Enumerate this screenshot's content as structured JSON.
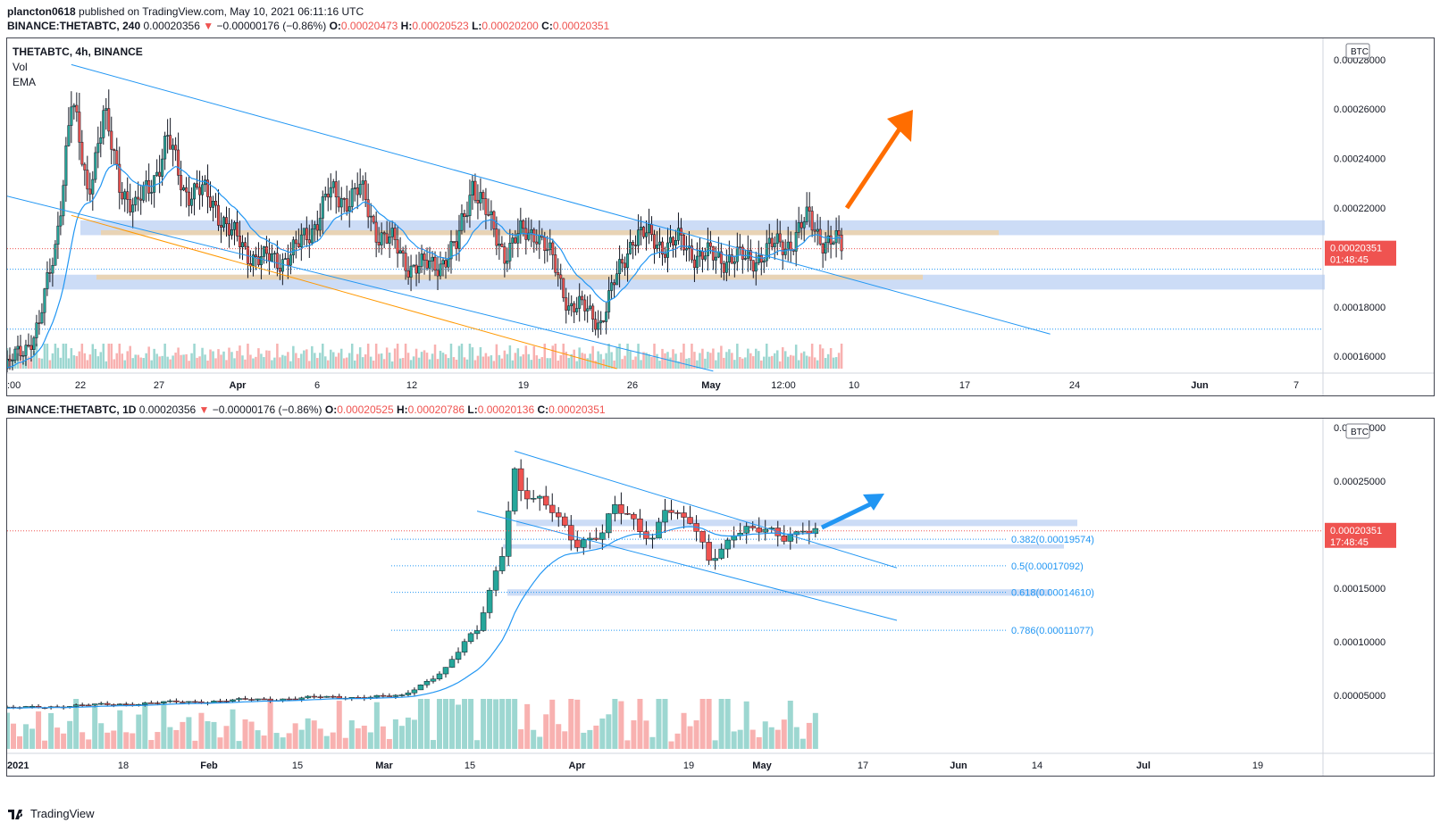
{
  "header": {
    "author": "plancton0618",
    "published": "published on TradingView.com, May 10, 2021 06:11:16 UTC"
  },
  "chart_data": [
    {
      "type": "candlestick",
      "title": "BINANCE:THETABTC, 240",
      "symbol_line": {
        "symbol": "BINANCE:THETABTC, 240",
        "last": "0.00020356",
        "change_arrow": "▼",
        "change": "−0.00000176 (−0.86%)",
        "O": "0.00020473",
        "H": "0.00020523",
        "L": "0.00020200",
        "C": "0.00020351"
      },
      "legend": [
        "THETABTC, 4h, BINANCE",
        "Vol",
        "EMA"
      ],
      "currency": "BTC",
      "y_ticks": [
        "0.00028000",
        "0.00026000",
        "0.00024000",
        "0.00022000",
        "0.00018000",
        "0.00016000"
      ],
      "ylim": [
        0.000155,
        0.000285
      ],
      "price_label": {
        "value": "0.00020351",
        "countdown": "01:48:45"
      },
      "x_ticks": [
        ":00",
        "22",
        "27",
        "Apr",
        "6",
        "12",
        "19",
        "26",
        "May",
        "12:00",
        "10",
        "17",
        "24",
        "Jun",
        "7"
      ],
      "x_range": [
        "2021-03-19",
        "2021-06-09"
      ],
      "close_series": [
        [
          "2021-03-19",
          0.000155
        ],
        [
          "2021-03-21",
          0.000172
        ],
        [
          "2021-03-22",
          0.000205
        ],
        [
          "2021-03-23",
          0.000262
        ],
        [
          "2021-03-24",
          0.000228
        ],
        [
          "2021-03-25",
          0.000256
        ],
        [
          "2021-03-26",
          0.000232
        ],
        [
          "2021-03-27",
          0.000218
        ],
        [
          "2021-03-29",
          0.000246
        ],
        [
          "2021-03-30",
          0.000229
        ],
        [
          "2021-04-01",
          0.000222
        ],
        [
          "2021-04-02",
          0.000208
        ],
        [
          "2021-04-04",
          0.000198
        ],
        [
          "2021-04-06",
          0.000202
        ],
        [
          "2021-04-08",
          0.000224
        ],
        [
          "2021-04-10",
          0.000226
        ],
        [
          "2021-04-11",
          0.000212
        ],
        [
          "2021-04-13",
          0.000198
        ],
        [
          "2021-04-14",
          0.000195
        ],
        [
          "2021-04-16",
          0.000203
        ],
        [
          "2021-04-17",
          0.000232
        ],
        [
          "2021-04-18",
          0.000214
        ],
        [
          "2021-04-19",
          0.000203
        ],
        [
          "2021-04-20",
          0.000208
        ],
        [
          "2021-04-21",
          0.000212
        ],
        [
          "2021-04-23",
          0.000182
        ],
        [
          "2021-04-24",
          0.000178
        ],
        [
          "2021-04-25",
          0.000175
        ],
        [
          "2021-04-26",
          0.000191
        ],
        [
          "2021-04-27",
          0.00021
        ],
        [
          "2021-04-28",
          0.000207
        ],
        [
          "2021-04-30",
          0.000205
        ],
        [
          "2021-05-01",
          0.000202
        ],
        [
          "2021-05-02",
          0.000199
        ],
        [
          "2021-05-03",
          0.000201
        ],
        [
          "2021-05-04",
          0.000198
        ],
        [
          "2021-05-05",
          0.000202
        ],
        [
          "2021-05-06",
          0.000204
        ],
        [
          "2021-05-07",
          0.000208
        ],
        [
          "2021-05-08",
          0.000215
        ],
        [
          "2021-05-09",
          0.000207
        ],
        [
          "2021-05-10",
          0.0002035
        ]
      ],
      "drawings": [
        {
          "kind": "trendline",
          "color": "#2196f3",
          "from": [
            "2021-03-23",
            0.000278
          ],
          "to": [
            "2021-05-23",
            0.000169
          ]
        },
        {
          "kind": "trendline",
          "color": "#2196f3",
          "from": [
            "2021-03-17",
            0.000228
          ],
          "to": [
            "2021-05-02",
            0.000154
          ]
        },
        {
          "kind": "trendline",
          "color": "#ff9800",
          "from": [
            "2021-03-23",
            0.000217
          ],
          "to": [
            "2021-04-26",
            0.000155
          ]
        },
        {
          "kind": "zone",
          "color": "#aac4f0",
          "y": [
            0.000209,
            0.000215
          ]
        },
        {
          "kind": "zone",
          "color": "#aac4f0",
          "y": [
            0.000187,
            0.000193
          ]
        },
        {
          "kind": "arrow",
          "color": "#ff6d00"
        }
      ],
      "hlines": [
        0.0001952,
        0.000171
      ]
    },
    {
      "type": "candlestick",
      "title": "BINANCE:THETABTC, 1D",
      "symbol_line": {
        "symbol": "BINANCE:THETABTC, 1D",
        "last": "0.00020356",
        "change_arrow": "▼",
        "change": "−0.00000176 (−0.86%)",
        "O": "0.00020525",
        "H": "0.00020786",
        "L": "0.00020136",
        "C": "0.00020351"
      },
      "currency": "BTC",
      "y_ticks": [
        "0.00030000",
        "0.00025000",
        "0.00015000",
        "0.00010000",
        "0.00005000"
      ],
      "ylim": [
        0.0,
        0.0003
      ],
      "price_label": {
        "value": "0.00020351",
        "countdown": "17:48:45"
      },
      "x_ticks": [
        "2021",
        "18",
        "Feb",
        "15",
        "Mar",
        "15",
        "Apr",
        "19",
        "May",
        "17",
        "Jun",
        "14",
        "Jul",
        "19"
      ],
      "x_range": [
        "2021-01-01",
        "2021-07-30"
      ],
      "close_series": [
        [
          "2021-01-01",
          3.8e-05
        ],
        [
          "2021-01-20",
          4.2e-05
        ],
        [
          "2021-02-05",
          4.5e-05
        ],
        [
          "2021-02-20",
          4.8e-05
        ],
        [
          "2021-03-05",
          4.9e-05
        ],
        [
          "2021-03-08",
          6e-05
        ],
        [
          "2021-03-12",
          7.5e-05
        ],
        [
          "2021-03-15",
          9.8e-05
        ],
        [
          "2021-03-17",
          0.00011
        ],
        [
          "2021-03-19",
          0.000148
        ],
        [
          "2021-03-21",
          0.000186
        ],
        [
          "2021-03-22",
          0.000228
        ],
        [
          "2021-03-23",
          0.00026
        ],
        [
          "2021-03-24",
          0.00024
        ],
        [
          "2021-03-26",
          0.00023
        ],
        [
          "2021-03-29",
          0.000222
        ],
        [
          "2021-04-02",
          0.000194
        ],
        [
          "2021-04-06",
          0.0002
        ],
        [
          "2021-04-08",
          0.000224
        ],
        [
          "2021-04-11",
          0.000212
        ],
        [
          "2021-04-14",
          0.000198
        ],
        [
          "2021-04-16",
          0.000228
        ],
        [
          "2021-04-18",
          0.000214
        ],
        [
          "2021-04-20",
          0.00021
        ],
        [
          "2021-04-23",
          0.000178
        ],
        [
          "2021-04-25",
          0.000188
        ],
        [
          "2021-04-27",
          0.000205
        ],
        [
          "2021-05-01",
          0.000202
        ],
        [
          "2021-05-05",
          0.000198
        ],
        [
          "2021-05-07",
          0.000204
        ],
        [
          "2021-05-08",
          0.00021
        ],
        [
          "2021-05-09",
          0.000206
        ],
        [
          "2021-05-10",
          0.0002035
        ]
      ],
      "fibonacci": [
        {
          "label": "0.382(0.00019574)",
          "value": 0.00019574
        },
        {
          "label": "0.5(0.00017092)",
          "value": 0.00017092
        },
        {
          "label": "0.618(0.00014610)",
          "value": 0.0001461
        },
        {
          "label": "0.786(0.00011077)",
          "value": 0.00011077
        }
      ],
      "drawings": [
        {
          "kind": "trendline",
          "color": "#2196f3",
          "from": [
            "2021-03-23",
            0.000278
          ],
          "to": [
            "2021-05-23",
            0.000169
          ]
        },
        {
          "kind": "trendline",
          "color": "#2196f3",
          "from": [
            "2021-03-17",
            0.000222
          ],
          "to": [
            "2021-05-23",
            0.00012
          ]
        },
        {
          "kind": "zone",
          "color": "#aac4f0",
          "y": [
            0.000208,
            0.000214
          ]
        },
        {
          "kind": "zone",
          "color": "#aac4f0",
          "y": [
            0.000187,
            0.000191
          ]
        },
        {
          "kind": "zone",
          "color": "#aac4f0",
          "y": [
            0.000143,
            0.000149
          ]
        },
        {
          "kind": "arrow",
          "color": "#2196f3"
        }
      ]
    }
  ],
  "footer": {
    "brand": "TradingView"
  },
  "colors": {
    "up": "#26a69a",
    "down": "#ef5350",
    "ema": "#2196f3",
    "price_label": "#ef5350",
    "grid": "#434651"
  }
}
